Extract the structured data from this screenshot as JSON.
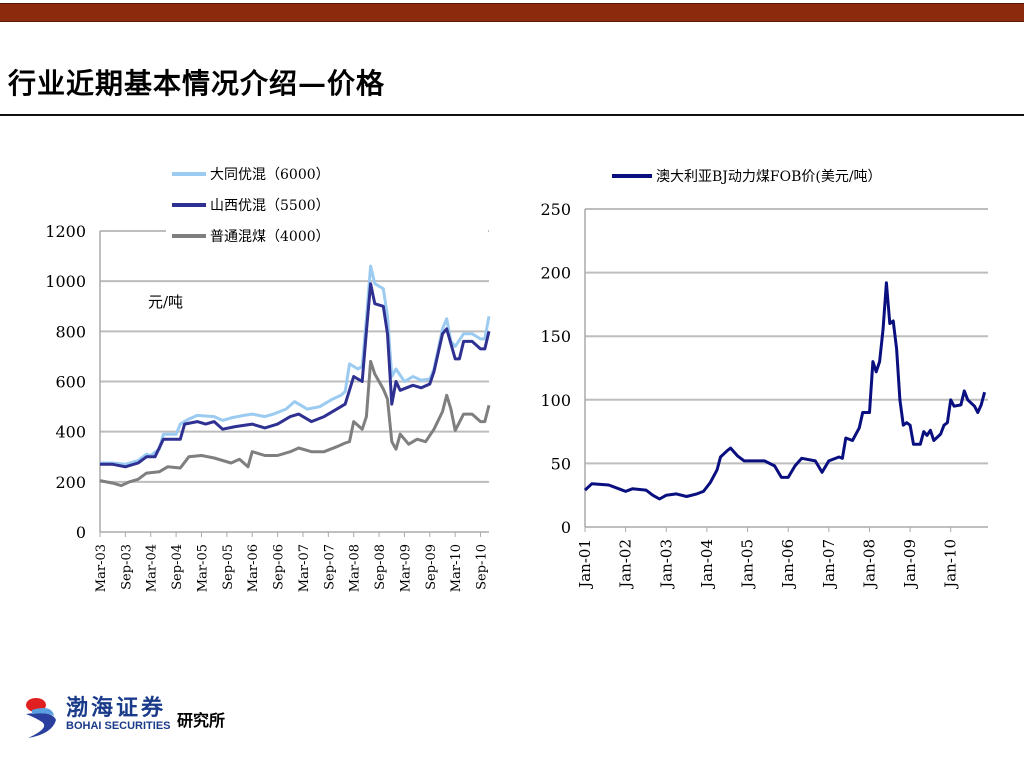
{
  "slide": {
    "title": "行业近期基本情况介绍—价格"
  },
  "logo": {
    "name_cn": "渤海证券",
    "name_en": "BOHAI SECURITIES",
    "institute": "研究所"
  },
  "chart_data": [
    {
      "type": "line",
      "unit_label": "元/吨",
      "legend_position": "top",
      "grid": true,
      "ylim": [
        0,
        1200
      ],
      "yticks": [
        0,
        200,
        400,
        600,
        800,
        1000,
        1200
      ],
      "xlim": [
        "2003-03",
        "2010-11"
      ],
      "xtick_labels": [
        "Mar-03",
        "Sep-03",
        "Mar-04",
        "Sep-04",
        "Mar-05",
        "Sep-05",
        "Mar-06",
        "Sep-06",
        "Mar-07",
        "Sep-07",
        "Mar-08",
        "Sep-08",
        "Mar-09",
        "Sep-09",
        "Mar-10",
        "Sep-10"
      ],
      "xtick_dates": [
        "2003-03",
        "2003-09",
        "2004-03",
        "2004-09",
        "2005-03",
        "2005-09",
        "2006-03",
        "2006-09",
        "2007-03",
        "2007-09",
        "2008-03",
        "2008-09",
        "2009-03",
        "2009-09",
        "2010-03",
        "2010-09"
      ],
      "series": [
        {
          "name": "大同优混（6000）",
          "color": "#9ccbf2",
          "points": [
            [
              "2003-03",
              275
            ],
            [
              "2003-06",
              275
            ],
            [
              "2003-09",
              270
            ],
            [
              "2003-12",
              285
            ],
            [
              "2004-02",
              310
            ],
            [
              "2004-03",
              305
            ],
            [
              "2004-05",
              330
            ],
            [
              "2004-06",
              390
            ],
            [
              "2004-09",
              390
            ],
            [
              "2004-10",
              430
            ],
            [
              "2004-12",
              450
            ],
            [
              "2005-02",
              465
            ],
            [
              "2005-06",
              460
            ],
            [
              "2005-08",
              445
            ],
            [
              "2005-10",
              455
            ],
            [
              "2006-01",
              465
            ],
            [
              "2006-03",
              470
            ],
            [
              "2006-06",
              460
            ],
            [
              "2006-08",
              470
            ],
            [
              "2006-11",
              490
            ],
            [
              "2007-01",
              520
            ],
            [
              "2007-04",
              490
            ],
            [
              "2007-07",
              500
            ],
            [
              "2007-10",
              530
            ],
            [
              "2007-12",
              545
            ],
            [
              "2008-01",
              560
            ],
            [
              "2008-02",
              670
            ],
            [
              "2008-04",
              650
            ],
            [
              "2008-05",
              660
            ],
            [
              "2008-06",
              850
            ],
            [
              "2008-07",
              1060
            ],
            [
              "2008-08",
              990
            ],
            [
              "2008-10",
              970
            ],
            [
              "2008-11",
              860
            ],
            [
              "2008-12",
              620
            ],
            [
              "2009-01",
              650
            ],
            [
              "2009-03",
              600
            ],
            [
              "2009-05",
              620
            ],
            [
              "2009-07",
              605
            ],
            [
              "2009-09",
              610
            ],
            [
              "2009-10",
              650
            ],
            [
              "2009-12",
              810
            ],
            [
              "2010-01",
              850
            ],
            [
              "2010-02",
              760
            ],
            [
              "2010-03",
              740
            ],
            [
              "2010-05",
              790
            ],
            [
              "2010-07",
              790
            ],
            [
              "2010-09",
              770
            ],
            [
              "2010-10",
              770
            ],
            [
              "2010-11",
              860
            ]
          ]
        },
        {
          "name": "山西优混（5500）",
          "color": "#2e3192",
          "points": [
            [
              "2003-03",
              270
            ],
            [
              "2003-06",
              270
            ],
            [
              "2003-09",
              260
            ],
            [
              "2003-12",
              275
            ],
            [
              "2004-02",
              300
            ],
            [
              "2004-04",
              300
            ],
            [
              "2004-06",
              370
            ],
            [
              "2004-10",
              370
            ],
            [
              "2004-11",
              430
            ],
            [
              "2005-02",
              440
            ],
            [
              "2005-04",
              430
            ],
            [
              "2005-06",
              440
            ],
            [
              "2005-08",
              410
            ],
            [
              "2005-11",
              420
            ],
            [
              "2006-03",
              430
            ],
            [
              "2006-06",
              415
            ],
            [
              "2006-09",
              430
            ],
            [
              "2006-12",
              460
            ],
            [
              "2007-02",
              470
            ],
            [
              "2007-05",
              440
            ],
            [
              "2007-08",
              460
            ],
            [
              "2007-11",
              490
            ],
            [
              "2008-01",
              510
            ],
            [
              "2008-03",
              620
            ],
            [
              "2008-05",
              600
            ],
            [
              "2008-06",
              800
            ],
            [
              "2008-07",
              990
            ],
            [
              "2008-08",
              910
            ],
            [
              "2008-10",
              900
            ],
            [
              "2008-11",
              790
            ],
            [
              "2008-12",
              510
            ],
            [
              "2009-01",
              600
            ],
            [
              "2009-02",
              565
            ],
            [
              "2009-05",
              585
            ],
            [
              "2009-07",
              575
            ],
            [
              "2009-09",
              590
            ],
            [
              "2009-10",
              640
            ],
            [
              "2009-12",
              790
            ],
            [
              "2010-01",
              810
            ],
            [
              "2010-03",
              690
            ],
            [
              "2010-04",
              690
            ],
            [
              "2010-05",
              760
            ],
            [
              "2010-07",
              760
            ],
            [
              "2010-09",
              730
            ],
            [
              "2010-10",
              730
            ],
            [
              "2010-11",
              800
            ]
          ]
        },
        {
          "name": "普通混煤（4000）",
          "color": "#7f7f7f",
          "points": [
            [
              "2003-03",
              205
            ],
            [
              "2003-06",
              195
            ],
            [
              "2003-08",
              185
            ],
            [
              "2003-10",
              200
            ],
            [
              "2003-12",
              210
            ],
            [
              "2004-02",
              235
            ],
            [
              "2004-05",
              240
            ],
            [
              "2004-07",
              260
            ],
            [
              "2004-10",
              255
            ],
            [
              "2004-12",
              300
            ],
            [
              "2005-03",
              305
            ],
            [
              "2005-06",
              295
            ],
            [
              "2005-08",
              285
            ],
            [
              "2005-10",
              275
            ],
            [
              "2005-12",
              290
            ],
            [
              "2006-02",
              260
            ],
            [
              "2006-03",
              320
            ],
            [
              "2006-06",
              305
            ],
            [
              "2006-09",
              305
            ],
            [
              "2006-12",
              320
            ],
            [
              "2007-02",
              335
            ],
            [
              "2007-05",
              320
            ],
            [
              "2007-08",
              320
            ],
            [
              "2007-11",
              340
            ],
            [
              "2008-01",
              355
            ],
            [
              "2008-02",
              360
            ],
            [
              "2008-03",
              440
            ],
            [
              "2008-05",
              410
            ],
            [
              "2008-06",
              460
            ],
            [
              "2008-07",
              680
            ],
            [
              "2008-08",
              630
            ],
            [
              "2008-10",
              570
            ],
            [
              "2008-11",
              530
            ],
            [
              "2008-12",
              360
            ],
            [
              "2009-01",
              330
            ],
            [
              "2009-02",
              390
            ],
            [
              "2009-04",
              350
            ],
            [
              "2009-06",
              370
            ],
            [
              "2009-08",
              360
            ],
            [
              "2009-10",
              410
            ],
            [
              "2009-12",
              480
            ],
            [
              "2010-01",
              545
            ],
            [
              "2010-02",
              490
            ],
            [
              "2010-03",
              405
            ],
            [
              "2010-05",
              470
            ],
            [
              "2010-07",
              470
            ],
            [
              "2010-09",
              440
            ],
            [
              "2010-10",
              440
            ],
            [
              "2010-11",
              505
            ]
          ]
        }
      ]
    },
    {
      "type": "line",
      "legend_position": "top",
      "grid": true,
      "ylim": [
        0,
        250
      ],
      "yticks": [
        0,
        50,
        100,
        150,
        200,
        250
      ],
      "xlim": [
        "2001-01",
        "2010-12"
      ],
      "xtick_labels": [
        "Jan-01",
        "Jan-02",
        "Jan-03",
        "Jan-04",
        "Jan-05",
        "Jan-06",
        "Jan-07",
        "Jan-08",
        "Jan-09",
        "Jan-10"
      ],
      "xtick_dates": [
        "2001-01",
        "2002-01",
        "2003-01",
        "2004-01",
        "2005-01",
        "2006-01",
        "2007-01",
        "2008-01",
        "2009-01",
        "2010-01"
      ],
      "series": [
        {
          "name": "澳大利亚BJ动力煤FOB价(美元/吨）",
          "color": "#0a0f80",
          "points": [
            [
              "2001-01",
              29
            ],
            [
              "2001-03",
              34
            ],
            [
              "2001-08",
              33
            ],
            [
              "2001-11",
              30
            ],
            [
              "2002-01",
              28
            ],
            [
              "2002-03",
              30
            ],
            [
              "2002-07",
              29
            ],
            [
              "2002-09",
              25
            ],
            [
              "2002-11",
              22
            ],
            [
              "2003-01",
              25
            ],
            [
              "2003-04",
              26
            ],
            [
              "2003-07",
              24
            ],
            [
              "2003-10",
              26
            ],
            [
              "2003-12",
              28
            ],
            [
              "2004-02",
              35
            ],
            [
              "2004-04",
              45
            ],
            [
              "2004-05",
              55
            ],
            [
              "2004-07",
              60
            ],
            [
              "2004-08",
              62
            ],
            [
              "2004-10",
              56
            ],
            [
              "2004-12",
              52
            ],
            [
              "2005-06",
              52
            ],
            [
              "2005-09",
              48
            ],
            [
              "2005-11",
              39
            ],
            [
              "2006-01",
              39
            ],
            [
              "2006-03",
              48
            ],
            [
              "2006-05",
              54
            ],
            [
              "2006-09",
              52
            ],
            [
              "2006-11",
              43
            ],
            [
              "2007-01",
              52
            ],
            [
              "2007-04",
              55
            ],
            [
              "2007-05",
              54
            ],
            [
              "2007-06",
              70
            ],
            [
              "2007-08",
              68
            ],
            [
              "2007-10",
              78
            ],
            [
              "2007-11",
              90
            ],
            [
              "2008-01",
              90
            ],
            [
              "2008-02",
              130
            ],
            [
              "2008-03",
              122
            ],
            [
              "2008-04",
              130
            ],
            [
              "2008-05",
              155
            ],
            [
              "2008-06",
              192
            ],
            [
              "2008-07",
              160
            ],
            [
              "2008-08",
              162
            ],
            [
              "2008-09",
              140
            ],
            [
              "2008-10",
              100
            ],
            [
              "2008-11",
              80
            ],
            [
              "2008-12",
              82
            ],
            [
              "2009-01",
              80
            ],
            [
              "2009-02",
              65
            ],
            [
              "2009-04",
              65
            ],
            [
              "2009-05",
              75
            ],
            [
              "2009-06",
              72
            ],
            [
              "2009-07",
              76
            ],
            [
              "2009-08",
              68
            ],
            [
              "2009-10",
              73
            ],
            [
              "2009-11",
              80
            ],
            [
              "2009-12",
              82
            ],
            [
              "2010-01",
              100
            ],
            [
              "2010-02",
              95
            ],
            [
              "2010-04",
              96
            ],
            [
              "2010-05",
              107
            ],
            [
              "2010-06",
              100
            ],
            [
              "2010-08",
              95
            ],
            [
              "2010-09",
              90
            ],
            [
              "2010-10",
              96
            ],
            [
              "2010-11",
              106
            ]
          ]
        }
      ]
    }
  ]
}
